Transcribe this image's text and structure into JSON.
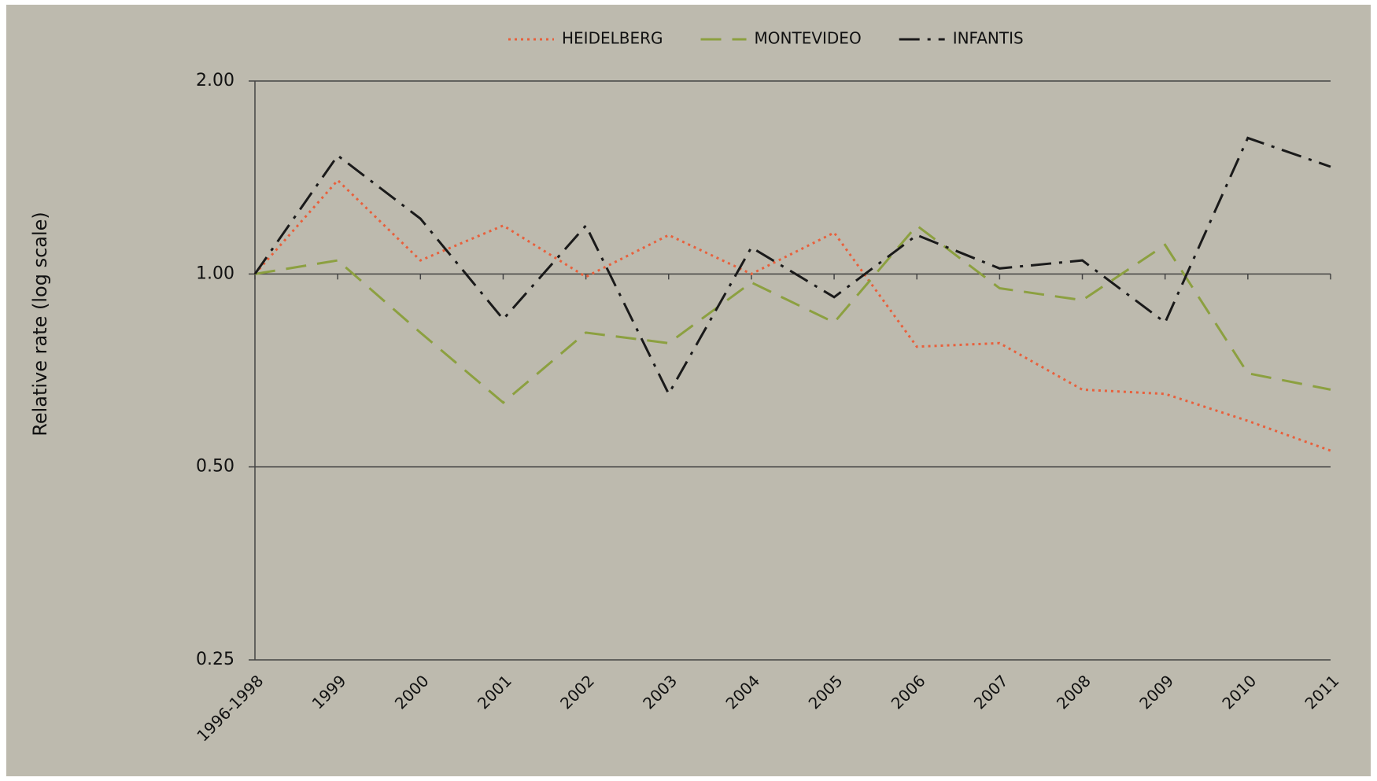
{
  "chart_data": {
    "type": "line",
    "y_label": "Relative rate (log scale)",
    "log_scale": true,
    "grid": true,
    "legend": "top",
    "categories": [
      "1996-1998",
      "1999",
      "2000",
      "2001",
      "2002",
      "2003",
      "2004",
      "2005",
      "2006",
      "2007",
      "2008",
      "2009",
      "2010",
      "2011"
    ],
    "ylim": [
      0.25,
      2.0
    ],
    "yticks": [
      {
        "value": 0.25,
        "label": "0.25"
      },
      {
        "value": 0.5,
        "label": "0.50"
      },
      {
        "value": 1.0,
        "label": "1.00"
      },
      {
        "value": 2.0,
        "label": "2.00"
      }
    ],
    "series": [
      {
        "name": "HEIDELBERG",
        "color": "#e8603c",
        "style": "dotted",
        "values": [
          1.0,
          1.4,
          1.05,
          1.19,
          0.99,
          1.15,
          1.0,
          1.16,
          0.77,
          0.78,
          0.66,
          0.65,
          0.59,
          0.53
        ]
      },
      {
        "name": "MONTEVIDEO",
        "color": "#8ca040",
        "style": "dashed",
        "values": [
          1.0,
          1.05,
          0.81,
          0.63,
          0.81,
          0.78,
          0.97,
          0.84,
          1.19,
          0.95,
          0.91,
          1.11,
          0.7,
          0.66
        ]
      },
      {
        "name": "INFANTIS",
        "color": "#1a1a1a",
        "style": "dashdot",
        "values": [
          1.0,
          1.53,
          1.22,
          0.85,
          1.19,
          0.65,
          1.1,
          0.92,
          1.15,
          1.02,
          1.05,
          0.84,
          1.63,
          1.47
        ]
      }
    ]
  }
}
